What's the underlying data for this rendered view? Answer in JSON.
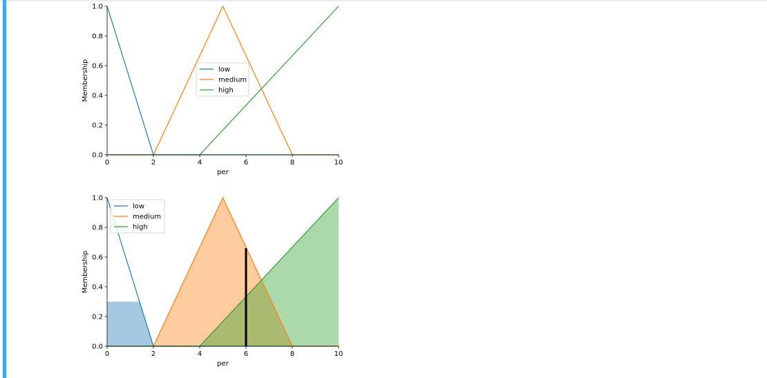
{
  "cell": {
    "accent_color": "#42a5f5"
  },
  "chart_data": [
    {
      "type": "line",
      "xlabel": "per",
      "ylabel": "Membership",
      "xlim": [
        0,
        10
      ],
      "ylim": [
        0,
        1
      ],
      "xticks": [
        "0",
        "2",
        "4",
        "6",
        "8",
        "10"
      ],
      "yticks": [
        "0.0",
        "0.2",
        "0.4",
        "0.6",
        "0.8",
        "1.0"
      ],
      "legend_position": "center",
      "series": [
        {
          "name": "low",
          "color": "#1f77b4",
          "x": [
            0,
            2,
            10
          ],
          "y": [
            1,
            0,
            0
          ]
        },
        {
          "name": "medium",
          "color": "#ff7f0e",
          "x": [
            0,
            2,
            5,
            8,
            10
          ],
          "y": [
            0,
            0,
            1,
            0,
            0
          ]
        },
        {
          "name": "high",
          "color": "#2ca02c",
          "x": [
            0,
            4,
            10
          ],
          "y": [
            0,
            0,
            1
          ]
        }
      ]
    },
    {
      "type": "area",
      "xlabel": "per",
      "ylabel": "Membership",
      "xlim": [
        0,
        10
      ],
      "ylim": [
        0,
        1
      ],
      "xticks": [
        "0",
        "2",
        "4",
        "6",
        "8",
        "10"
      ],
      "yticks": [
        "0.0",
        "0.2",
        "0.4",
        "0.6",
        "0.8",
        "1.0"
      ],
      "legend_position": "upper left",
      "series": [
        {
          "name": "low",
          "color": "#1f77b4",
          "x": [
            0,
            2,
            10
          ],
          "y": [
            1,
            0,
            0
          ],
          "fill_x": [
            0,
            1.4,
            2
          ],
          "fill_y": [
            0.3,
            0.3,
            0
          ]
        },
        {
          "name": "medium",
          "color": "#ff7f0e",
          "x": [
            0,
            2,
            5,
            8,
            10
          ],
          "y": [
            0,
            0,
            1,
            0,
            0
          ],
          "fill_x": [
            2,
            5,
            8
          ],
          "fill_y": [
            0,
            1,
            0
          ]
        },
        {
          "name": "high",
          "color": "#2ca02c",
          "x": [
            0,
            4,
            10
          ],
          "y": [
            0,
            0,
            1
          ],
          "fill_x": [
            4,
            10
          ],
          "fill_y": [
            0,
            1
          ]
        }
      ],
      "vertical_marker": {
        "x": 6,
        "y": 0.66,
        "color": "#000000"
      }
    }
  ]
}
